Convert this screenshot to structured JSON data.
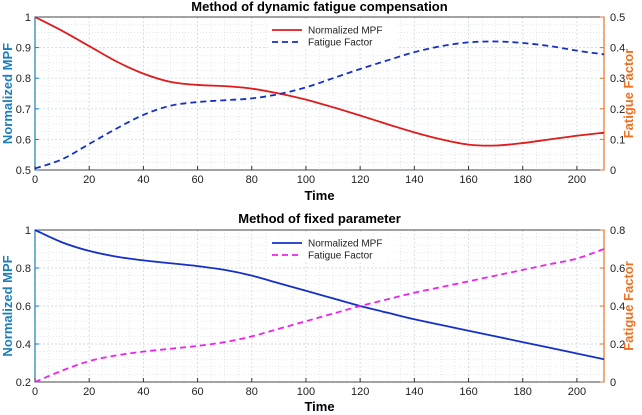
{
  "colors": {
    "left_axis": "#1a7fbf",
    "right_axis": "#f07020",
    "grid": "#cfdbe6",
    "red": "#e01b1b",
    "blue": "#1530c8",
    "magenta": "#ee22ee"
  },
  "chart_data": [
    {
      "type": "line",
      "title": "Method of dynamic fatigue compensation",
      "xlabel": "Time",
      "ylabel_left": "Normalized MPF",
      "ylabel_right": "Fatigue Factor",
      "xlim": [
        0,
        210
      ],
      "ylim_left": [
        0.5,
        1.0
      ],
      "ylim_right": [
        0,
        0.5
      ],
      "xticks": [
        0,
        20,
        40,
        60,
        80,
        100,
        120,
        140,
        160,
        180,
        200
      ],
      "yticks_left": [
        0.5,
        0.6,
        0.7,
        0.8,
        0.9,
        1
      ],
      "yticks_right": [
        0,
        0.1,
        0.2,
        0.3,
        0.4,
        0.5
      ],
      "grid": true,
      "legend_position": "top-center",
      "series": [
        {
          "name": "Normalized MPF",
          "axis": "left",
          "style": "solid",
          "color": "red",
          "x": [
            0,
            10,
            20,
            30,
            40,
            50,
            60,
            70,
            80,
            90,
            100,
            110,
            120,
            130,
            140,
            150,
            160,
            170,
            180,
            190,
            200,
            210
          ],
          "y": [
            1.0,
            0.955,
            0.905,
            0.855,
            0.815,
            0.788,
            0.778,
            0.774,
            0.766,
            0.75,
            0.73,
            0.705,
            0.678,
            0.65,
            0.623,
            0.6,
            0.583,
            0.58,
            0.588,
            0.6,
            0.612,
            0.622
          ]
        },
        {
          "name": "Fatigue Factor",
          "axis": "right",
          "style": "dashed",
          "color": "blue",
          "x": [
            0,
            10,
            20,
            30,
            40,
            50,
            60,
            70,
            80,
            90,
            100,
            110,
            120,
            130,
            140,
            150,
            160,
            170,
            180,
            190,
            200,
            210
          ],
          "y": [
            0.005,
            0.035,
            0.085,
            0.135,
            0.18,
            0.21,
            0.222,
            0.228,
            0.234,
            0.248,
            0.27,
            0.3,
            0.33,
            0.358,
            0.385,
            0.405,
            0.417,
            0.42,
            0.415,
            0.405,
            0.39,
            0.378
          ]
        }
      ]
    },
    {
      "type": "line",
      "title": "Method of fixed parameter",
      "xlabel": "Time",
      "ylabel_left": "Normalized MPF",
      "ylabel_right": "Fatigue Factor",
      "xlim": [
        0,
        210
      ],
      "ylim_left": [
        0.2,
        1.0
      ],
      "ylim_right": [
        0,
        0.8
      ],
      "xticks": [
        0,
        20,
        40,
        60,
        80,
        100,
        120,
        140,
        160,
        180,
        200
      ],
      "yticks_left": [
        0.2,
        0.4,
        0.6,
        0.8,
        1
      ],
      "yticks_right": [
        0,
        0.2,
        0.4,
        0.6,
        0.8
      ],
      "grid": true,
      "legend_position": "top-center",
      "series": [
        {
          "name": "Normalized MPF",
          "axis": "left",
          "style": "solid",
          "color": "blue",
          "x": [
            0,
            10,
            20,
            30,
            40,
            50,
            60,
            70,
            80,
            90,
            100,
            110,
            120,
            130,
            140,
            150,
            160,
            170,
            180,
            190,
            200,
            210
          ],
          "y": [
            1.0,
            0.935,
            0.89,
            0.86,
            0.84,
            0.825,
            0.81,
            0.79,
            0.76,
            0.72,
            0.68,
            0.64,
            0.6,
            0.565,
            0.53,
            0.5,
            0.47,
            0.44,
            0.41,
            0.38,
            0.35,
            0.32
          ]
        },
        {
          "name": "Fatigue Factor",
          "axis": "right",
          "style": "dashed",
          "color": "magenta",
          "x": [
            0,
            10,
            20,
            30,
            40,
            50,
            60,
            70,
            80,
            90,
            100,
            110,
            120,
            130,
            140,
            150,
            160,
            170,
            180,
            190,
            200,
            210
          ],
          "y": [
            0.0,
            0.06,
            0.11,
            0.14,
            0.16,
            0.175,
            0.19,
            0.21,
            0.24,
            0.28,
            0.32,
            0.36,
            0.4,
            0.435,
            0.47,
            0.5,
            0.53,
            0.56,
            0.59,
            0.62,
            0.65,
            0.7
          ]
        }
      ]
    }
  ]
}
